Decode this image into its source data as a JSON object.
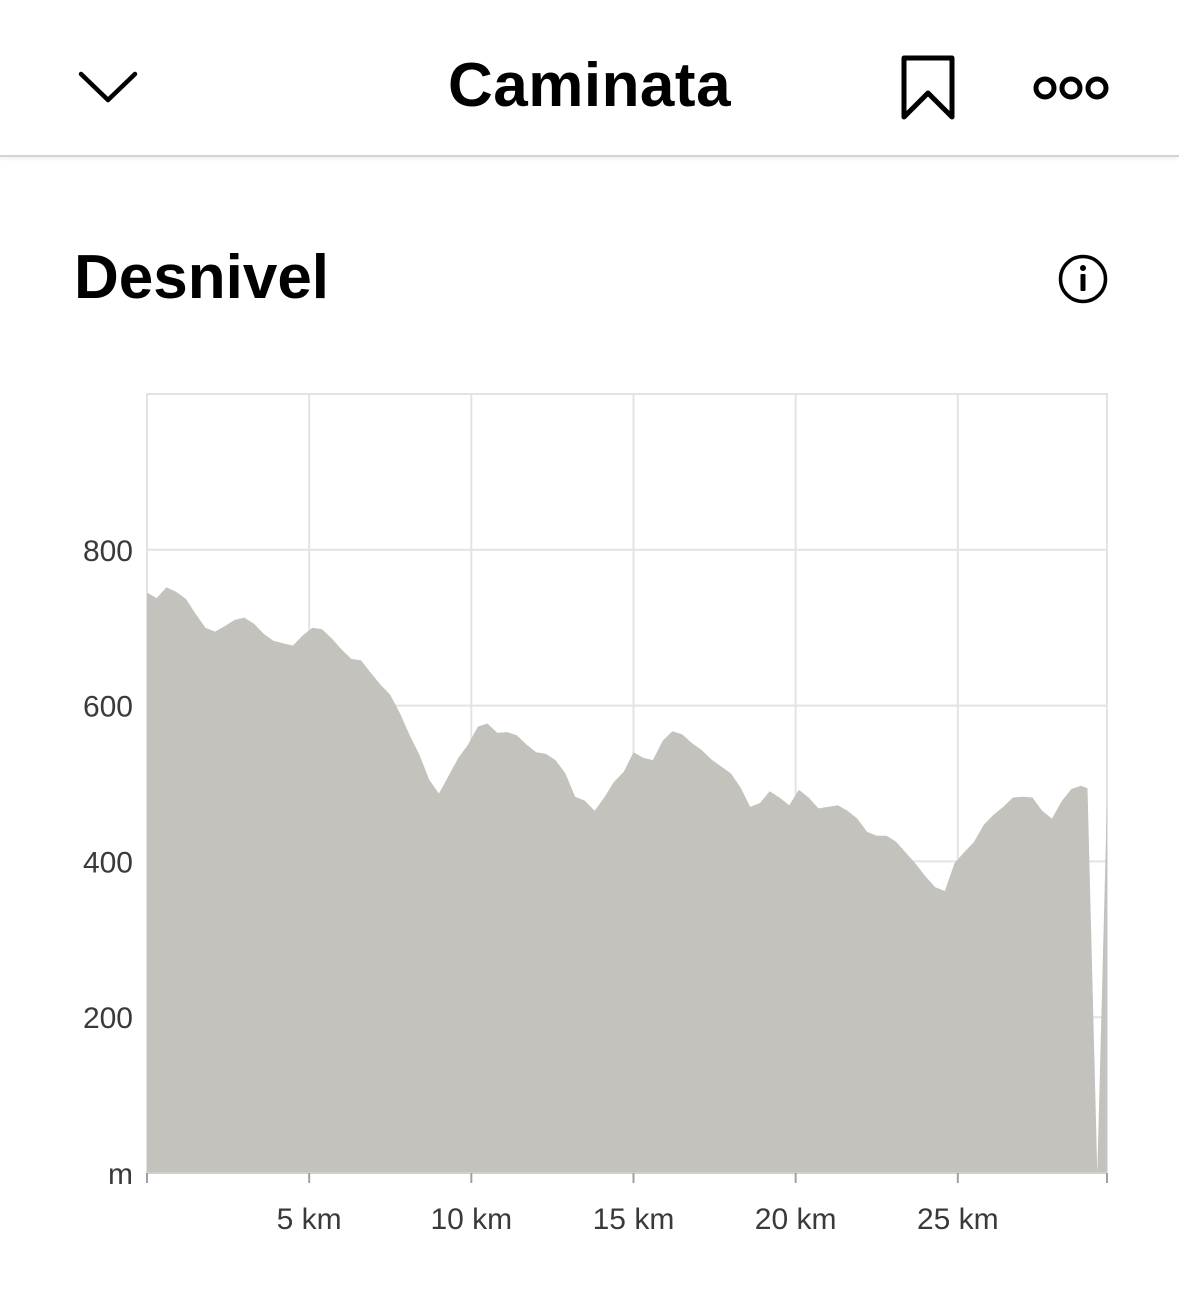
{
  "header": {
    "title": "Caminata",
    "back_icon": "chevron-down-icon",
    "bookmark_icon": "bookmark-icon",
    "more_icon": "more-dots-icon"
  },
  "section": {
    "title": "Desnivel",
    "info_icon": "info-icon"
  },
  "chart_data": {
    "type": "area",
    "title": "",
    "xlabel": "",
    "ylabel": "m",
    "xlim": [
      0,
      29.6
    ],
    "ylim": [
      0,
      1000
    ],
    "grid": true,
    "legend": "none",
    "fill_color": "#c3c2bd",
    "grid_color": "#e3e3e3",
    "x_ticks": [
      {
        "value": 5,
        "label": "5 km"
      },
      {
        "value": 10,
        "label": "10 km"
      },
      {
        "value": 15,
        "label": "15 km"
      },
      {
        "value": 20,
        "label": "20 km"
      },
      {
        "value": 25,
        "label": "25 km"
      }
    ],
    "y_ticks": [
      {
        "value": 0,
        "label": "m"
      },
      {
        "value": 200,
        "label": "200"
      },
      {
        "value": 400,
        "label": "400"
      },
      {
        "value": 600,
        "label": "600"
      },
      {
        "value": 800,
        "label": "800"
      }
    ],
    "series": [
      {
        "x": [
          0,
          0.3,
          0.6,
          0.9,
          1.2,
          1.5,
          1.8,
          2.1,
          2.4,
          2.7,
          3.0,
          3.3,
          3.6,
          3.9,
          4.2,
          4.5,
          4.8,
          5.1,
          5.4,
          5.7,
          6.0,
          6.3,
          6.6,
          6.9,
          7.2,
          7.5,
          7.8,
          8.1,
          8.4,
          8.7,
          9.0,
          9.3,
          9.6,
          9.9,
          10.2,
          10.5,
          10.8,
          11.1,
          11.4,
          11.7,
          12.0,
          12.3,
          12.6,
          12.9,
          13.2,
          13.5,
          13.8,
          14.1,
          14.4,
          14.7,
          15.0,
          15.3,
          15.6,
          15.9,
          16.2,
          16.5,
          16.8,
          17.1,
          17.4,
          17.7,
          18.0,
          18.3,
          18.6,
          18.9,
          19.2,
          19.5,
          19.8,
          20.1,
          20.4,
          20.7,
          21.0,
          21.3,
          21.6,
          21.9,
          22.2,
          22.5,
          22.8,
          23.1,
          23.4,
          23.7,
          24.0,
          24.3,
          24.6,
          24.9,
          25.2,
          25.5,
          25.8,
          26.1,
          26.4,
          26.7,
          27.0,
          27.3,
          27.6,
          27.9,
          28.2,
          28.5,
          28.8,
          29.0,
          29.3,
          29.6
        ],
        "values": [
          745,
          738,
          752,
          746,
          737,
          718,
          700,
          695,
          702,
          710,
          713,
          705,
          692,
          683,
          680,
          677,
          690,
          700,
          698,
          686,
          672,
          660,
          658,
          642,
          627,
          614,
          590,
          562,
          537,
          505,
          487,
          510,
          533,
          550,
          573,
          577,
          565,
          566,
          562,
          550,
          540,
          538,
          530,
          513,
          483,
          478,
          465,
          482,
          502,
          515,
          540,
          533,
          530,
          555,
          567,
          563,
          552,
          543,
          531,
          522,
          513,
          495,
          470,
          475,
          490,
          482,
          472,
          492,
          482,
          468,
          470,
          472,
          465,
          455,
          438,
          433,
          433,
          425,
          411,
          397,
          381,
          367,
          362,
          398,
          412,
          425,
          447,
          460,
          470,
          482,
          483,
          482,
          465,
          455,
          477,
          493,
          497,
          494,
          0,
          480
        ]
      }
    ]
  }
}
